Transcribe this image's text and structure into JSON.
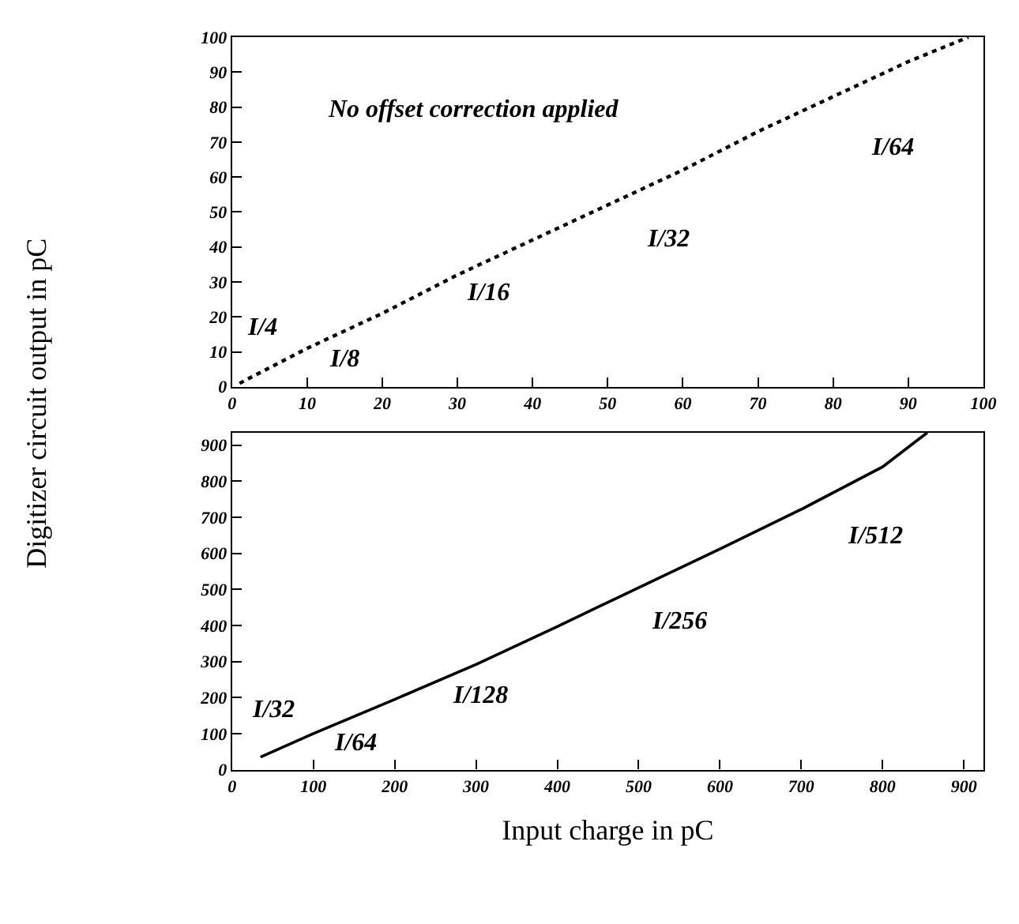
{
  "chart_data": [
    {
      "type": "line",
      "line_style": "dotted",
      "marker": "none",
      "grid": false,
      "x": [
        1,
        10,
        20,
        30,
        40,
        50,
        60,
        70,
        80,
        90,
        98
      ],
      "series": [
        {
          "color": "#000000",
          "values": [
            1,
            11,
            21,
            32,
            42,
            52,
            62,
            73,
            83,
            93,
            100
          ]
        }
      ],
      "xlim": [
        0,
        100
      ],
      "ylim": [
        0,
        100
      ],
      "xticks": [
        0,
        10,
        20,
        30,
        40,
        50,
        60,
        70,
        80,
        90,
        100
      ],
      "yticks": [
        0,
        10,
        20,
        30,
        40,
        50,
        60,
        70,
        80,
        90,
        100
      ],
      "annotations": [
        "No offset correction applied",
        "I/4",
        "I/8",
        "I/16",
        "I/32",
        "I/64"
      ]
    },
    {
      "type": "line",
      "line_style": "solid",
      "marker": "none",
      "grid": false,
      "xlabel": "Input charge in pC",
      "ylabel": "Digitizer circuit output in pC",
      "x": [
        35,
        100,
        200,
        300,
        400,
        500,
        600,
        700,
        800,
        855
      ],
      "series": [
        {
          "color": "#000000",
          "values": [
            35,
            100,
            195,
            292,
            397,
            505,
            612,
            722,
            840,
            935
          ]
        }
      ],
      "xlim": [
        0,
        924
      ],
      "ylim": [
        0,
        935
      ],
      "xticks": [
        0,
        100,
        200,
        300,
        400,
        500,
        600,
        700,
        800,
        900
      ],
      "yticks": [
        0,
        100,
        200,
        300,
        400,
        500,
        600,
        700,
        800,
        900
      ],
      "annotations": [
        "I/32",
        "I/64",
        "I/128",
        "I/256",
        "I/512"
      ]
    }
  ]
}
